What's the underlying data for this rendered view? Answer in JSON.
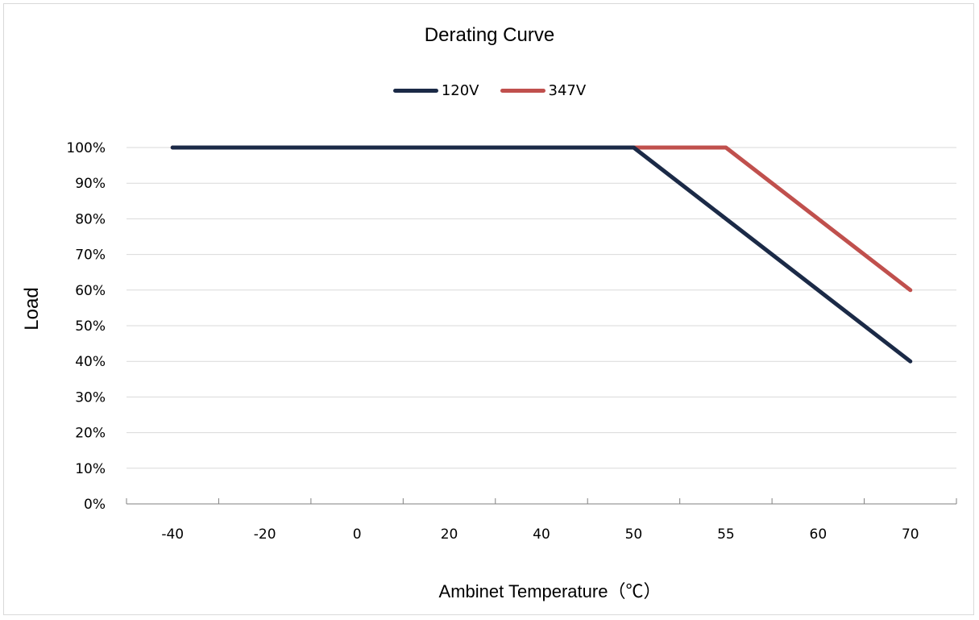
{
  "chart_data": {
    "type": "line",
    "title": "Derating Curve",
    "xlabel": "Ambinet Temperature（℃）",
    "ylabel": "Load",
    "x_categories": [
      "-40",
      "-20",
      "0",
      "20",
      "40",
      "50",
      "55",
      "60",
      "70"
    ],
    "y_ticks": [
      "0%",
      "10%",
      "20%",
      "30%",
      "40%",
      "50%",
      "60%",
      "70%",
      "80%",
      "90%",
      "100%"
    ],
    "ylim": [
      0,
      100
    ],
    "grid": true,
    "legend_position": "top-center",
    "series": [
      {
        "name": "120V",
        "color": "#1b2a47",
        "points": [
          {
            "x": "-40",
            "y": 100
          },
          {
            "x": "50",
            "y": 100
          },
          {
            "x": "70",
            "y": 40
          }
        ]
      },
      {
        "name": "347V",
        "color": "#c0504d",
        "points": [
          {
            "x": "-40",
            "y": 100
          },
          {
            "x": "55",
            "y": 100
          },
          {
            "x": "70",
            "y": 60
          }
        ]
      }
    ]
  }
}
